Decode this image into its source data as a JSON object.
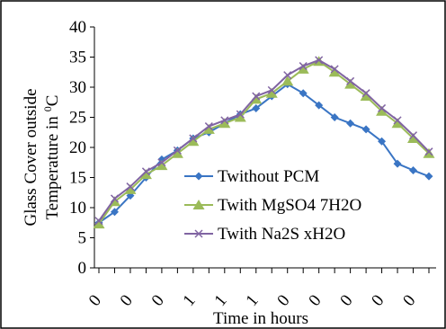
{
  "chart_data": {
    "type": "line",
    "y_label": {
      "line1": "Glass Cover outside",
      "line2": "Temperature in",
      "sup": "0",
      "unit": "C"
    },
    "x_label": "Time in hours",
    "categories": [
      "0",
      null,
      "0",
      null,
      "0",
      null,
      "1",
      null,
      "1",
      null,
      "1",
      null,
      "0",
      null,
      "0",
      null,
      "0",
      null,
      "0",
      null,
      "0",
      null
    ],
    "ylim": [
      0,
      40
    ],
    "yticks": [
      0,
      5,
      10,
      15,
      20,
      25,
      30,
      35,
      40
    ],
    "legend": "center-right",
    "series": [
      {
        "name": "Twithout PCM",
        "color": "#3a75c4",
        "marker": "diamond",
        "values": [
          7.5,
          9.3,
          12,
          15,
          18,
          19.5,
          21.5,
          22.5,
          24,
          25.5,
          26.5,
          28.5,
          30.5,
          29,
          27,
          25,
          24,
          23,
          21,
          17.3,
          16.2,
          15.2
        ]
      },
      {
        "name": "Twith MgSO4 7H2O",
        "color": "#9bbb59",
        "marker": "triangle",
        "values": [
          7.3,
          11,
          13,
          15.5,
          17,
          19,
          21,
          23,
          24,
          25,
          28,
          29,
          31,
          33,
          34.3,
          32.5,
          30.5,
          28.5,
          26,
          24,
          21.5,
          19
        ]
      },
      {
        "name": "Twith Na2S xH2O",
        "color": "#8064a2",
        "marker": "x",
        "values": [
          7.8,
          11.5,
          13.5,
          16,
          17.5,
          19.5,
          21.5,
          23.5,
          24.5,
          25.5,
          28.5,
          29.5,
          32,
          33.5,
          34.5,
          33,
          31,
          29,
          26.5,
          24.5,
          22,
          19.3
        ]
      }
    ]
  }
}
